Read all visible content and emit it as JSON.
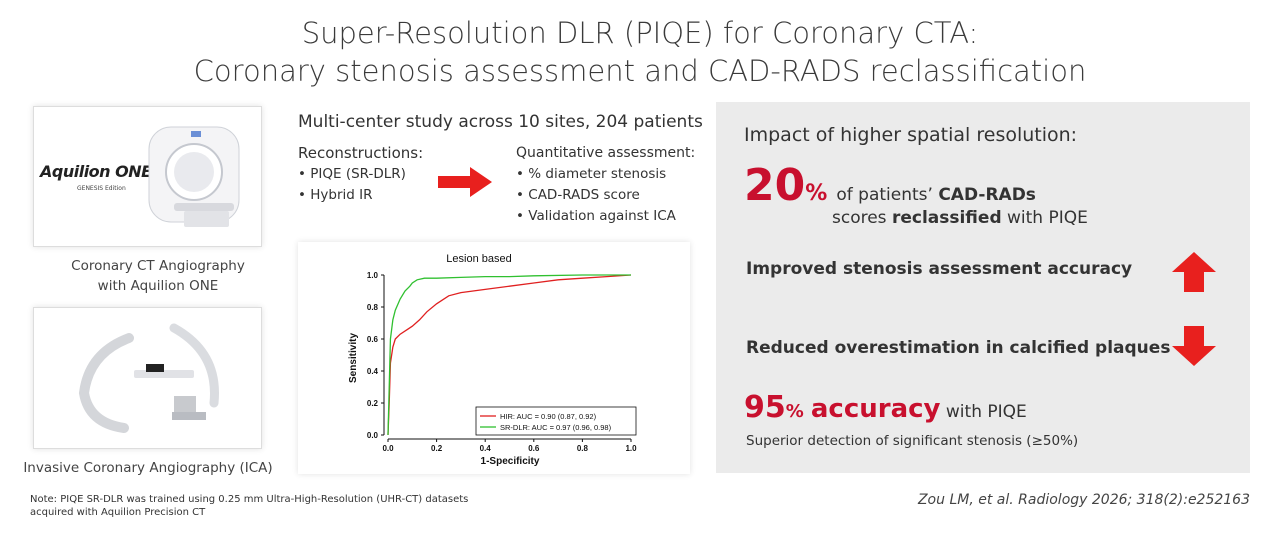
{
  "title": {
    "line1": "Super-Resolution DLR (PIQE) for Coronary CTA:",
    "line2": "Coronary stenosis assessment and CAD-RADS reclassification"
  },
  "left": {
    "scanner_brand": "Aquilion ONE",
    "scanner_edition": "GENESIS Edition",
    "caption1_line1": "Coronary CT Angiography",
    "caption1_line2": "with Aquilion ONE",
    "caption2": "Invasive Coronary Angiography (ICA)"
  },
  "middle": {
    "study": "Multi-center study across 10 sites, 204 patients",
    "recon_header": "Reconstructions:",
    "recon_items": [
      "PIQE (SR-DLR)",
      "Hybrid IR"
    ],
    "quant_header": "Quantitative assessment:",
    "quant_items": [
      "% diameter stenosis",
      "CAD-RADS score",
      "Validation against ICA"
    ]
  },
  "chart_data": {
    "type": "line",
    "title": "Lesion based",
    "xlabel": "1-Specificity",
    "ylabel": "Sensitivity",
    "xlim": [
      0,
      1
    ],
    "ylim": [
      0,
      1
    ],
    "xticks": [
      "0.0",
      "0.2",
      "0.4",
      "0.6",
      "0.8",
      "1.0"
    ],
    "yticks": [
      "0.0",
      "0.2",
      "0.4",
      "0.6",
      "0.8",
      "1.0"
    ],
    "legend_position": "bottom-right",
    "series": [
      {
        "name": "HIR: AUC = 0.90 (0.87, 0.92)",
        "color": "#e02020",
        "x": [
          0,
          0.005,
          0.01,
          0.02,
          0.03,
          0.05,
          0.08,
          0.1,
          0.13,
          0.16,
          0.2,
          0.25,
          0.3,
          0.35,
          0.4,
          0.5,
          0.6,
          0.7,
          0.8,
          0.9,
          1.0
        ],
        "y": [
          0,
          0.2,
          0.45,
          0.55,
          0.6,
          0.63,
          0.66,
          0.68,
          0.72,
          0.77,
          0.82,
          0.87,
          0.89,
          0.9,
          0.91,
          0.93,
          0.95,
          0.97,
          0.98,
          0.99,
          1.0
        ]
      },
      {
        "name": "SR-DLR: AUC = 0.97 (0.96, 0.98)",
        "color": "#30c030",
        "x": [
          0,
          0.005,
          0.01,
          0.02,
          0.03,
          0.05,
          0.07,
          0.09,
          0.1,
          0.12,
          0.15,
          0.2,
          0.3,
          0.4,
          0.5,
          0.6,
          0.8,
          1.0
        ],
        "y": [
          0,
          0.3,
          0.6,
          0.72,
          0.78,
          0.85,
          0.9,
          0.93,
          0.95,
          0.97,
          0.98,
          0.98,
          0.985,
          0.99,
          0.99,
          0.995,
          1.0,
          1.0
        ]
      }
    ]
  },
  "right": {
    "header": "Impact of higher spatial resolution:",
    "stat1_num": "20",
    "stat1_pct": "%",
    "stat1_text_a": "of patients’ ",
    "stat1_text_b": "CAD-RADs",
    "stat1_line2_a": "scores ",
    "stat1_line2_b": "reclassified",
    "stat1_line2_c": " with PIQE",
    "item_up": "Improved stenosis assessment accuracy",
    "item_down": "Reduced overestimation in calcified plaques",
    "stat2_num": "95",
    "stat2_pct": "%",
    "stat2_word": "accuracy",
    "stat2_suffix": " with PIQE",
    "stat2_sub": "Superior detection of significant stenosis (≥50%)",
    "arrow_color": "#e8201e"
  },
  "footer": {
    "note_line1": "Note: PIQE SR-DLR was trained using 0.25 mm Ultra-High-Resolution (UHR-CT) datasets",
    "note_line2": "acquired with Aquilion Precision CT",
    "citation": "Zou LM, et al. Radiology 2026; 318(2):e252163"
  }
}
